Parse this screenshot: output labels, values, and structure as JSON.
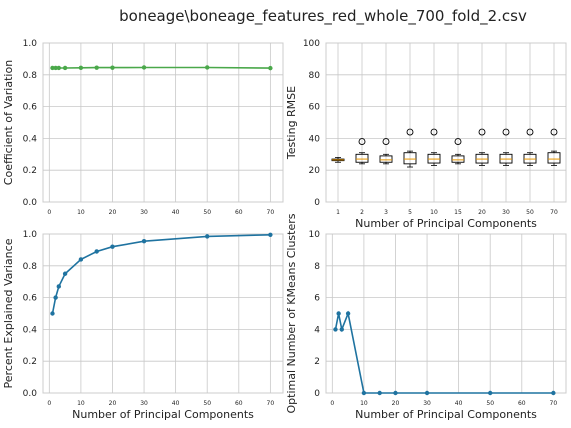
{
  "figure_title": "boneage\\boneage_features_red_whole_700_fold_2.csv",
  "colors": {
    "green": "#4aa84a",
    "blue": "#1f73a0"
  },
  "chart_data": [
    {
      "id": "cv",
      "type": "line",
      "ylabel": "Coefficient of Variation",
      "xlabel": "",
      "xlim": [
        -2,
        74
      ],
      "ylim": [
        0,
        1.0
      ],
      "xticks": [
        0,
        10,
        20,
        30,
        40,
        50,
        60,
        70
      ],
      "yticks": [
        "0.0",
        "0.2",
        "0.4",
        "0.6",
        "0.8",
        "1.0"
      ],
      "x": [
        1,
        2,
        3,
        5,
        10,
        15,
        20,
        30,
        50,
        70
      ],
      "y": [
        0.843,
        0.843,
        0.843,
        0.843,
        0.844,
        0.845,
        0.845,
        0.846,
        0.846,
        0.842
      ],
      "color": "green"
    },
    {
      "id": "rmse",
      "type": "box",
      "ylabel": "Testing RMSE",
      "xlabel": "Number of Principal Components",
      "ylim": [
        0,
        100
      ],
      "yticks": [
        "0",
        "20",
        "40",
        "60",
        "80",
        "100"
      ],
      "categories": [
        "1",
        "2",
        "3",
        "5",
        "10",
        "15",
        "20",
        "30",
        "50",
        "70"
      ],
      "boxes": [
        {
          "whislo": 25,
          "q1": 26,
          "med": 26.5,
          "q3": 27,
          "whishi": 28,
          "fliers": []
        },
        {
          "whislo": 24,
          "q1": 25,
          "med": 27,
          "q3": 30,
          "whishi": 31,
          "fliers": [
            38
          ]
        },
        {
          "whislo": 24,
          "q1": 25,
          "med": 26.5,
          "q3": 29,
          "whishi": 30,
          "fliers": [
            38
          ]
        },
        {
          "whislo": 22,
          "q1": 24,
          "med": 27,
          "q3": 31,
          "whishi": 32,
          "fliers": [
            44
          ]
        },
        {
          "whislo": 23,
          "q1": 24.5,
          "med": 27,
          "q3": 30,
          "whishi": 31,
          "fliers": [
            44
          ]
        },
        {
          "whislo": 24,
          "q1": 25,
          "med": 26.5,
          "q3": 29,
          "whishi": 30,
          "fliers": [
            38
          ]
        },
        {
          "whislo": 23,
          "q1": 24.5,
          "med": 27,
          "q3": 30,
          "whishi": 31,
          "fliers": [
            44
          ]
        },
        {
          "whislo": 23,
          "q1": 24.5,
          "med": 27,
          "q3": 30,
          "whishi": 31,
          "fliers": [
            44
          ]
        },
        {
          "whislo": 23,
          "q1": 24.5,
          "med": 27,
          "q3": 30,
          "whishi": 31,
          "fliers": [
            44
          ]
        },
        {
          "whislo": 23,
          "q1": 24.5,
          "med": 27,
          "q3": 31,
          "whishi": 32,
          "fliers": [
            44
          ]
        }
      ]
    },
    {
      "id": "pev",
      "type": "line",
      "ylabel": "Percent Explained Variance",
      "xlabel": "Number of Principal Components",
      "xlim": [
        -2,
        74
      ],
      "ylim": [
        0,
        1.0
      ],
      "xticks": [
        0,
        10,
        20,
        30,
        40,
        50,
        60,
        70
      ],
      "yticks": [
        "0.0",
        "0.2",
        "0.4",
        "0.6",
        "0.8",
        "1.0"
      ],
      "x": [
        1,
        2,
        3,
        5,
        10,
        15,
        20,
        30,
        50,
        70
      ],
      "y": [
        0.5,
        0.6,
        0.67,
        0.75,
        0.84,
        0.89,
        0.92,
        0.955,
        0.985,
        0.995
      ],
      "color": "blue"
    },
    {
      "id": "kmeans",
      "type": "line",
      "ylabel": "Optimal Number of KMeans Clusters",
      "xlabel": "Number of Principal Components",
      "xlim": [
        -2,
        74
      ],
      "ylim": [
        0,
        10
      ],
      "xticks": [
        0,
        10,
        20,
        30,
        40,
        50,
        60,
        70
      ],
      "yticks": [
        "0",
        "2",
        "4",
        "6",
        "8",
        "10"
      ],
      "x": [
        1,
        2,
        3,
        5,
        10,
        15,
        20,
        30,
        50,
        70
      ],
      "y": [
        4,
        5,
        4,
        5,
        0,
        0,
        0,
        0,
        0,
        0
      ],
      "color": "blue"
    }
  ]
}
